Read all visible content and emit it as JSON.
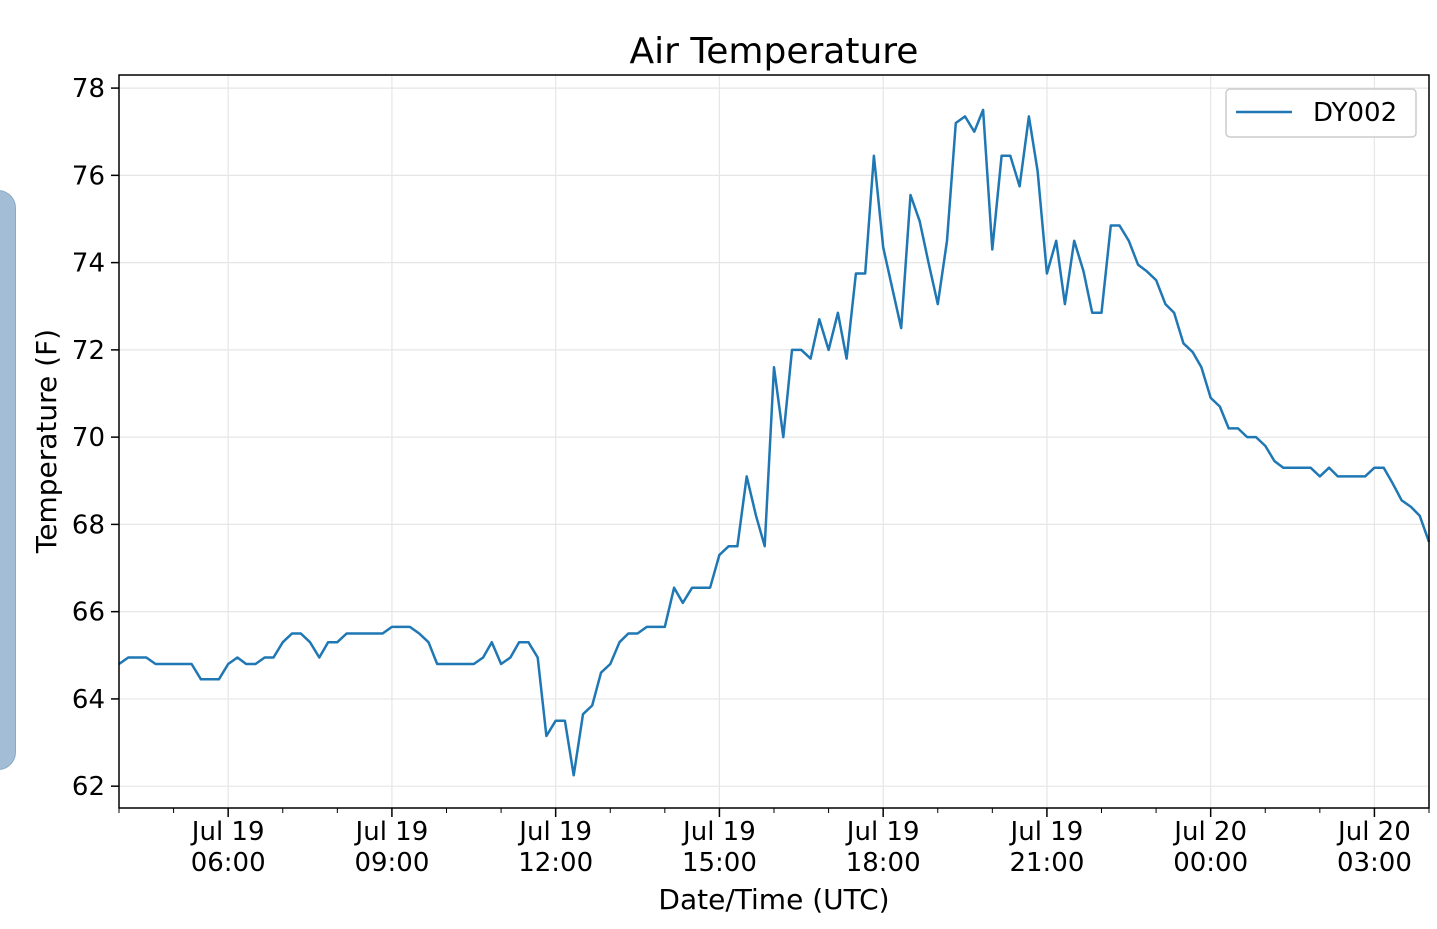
{
  "side_panel": {
    "color": "#a3bdd6"
  },
  "chart_data": {
    "type": "line",
    "title": "Air Temperature",
    "xlabel": "Date/Time (UTC)",
    "ylabel": "Temperature (F)",
    "ylim": [
      61.5,
      78.3
    ],
    "yticks": [
      62,
      64,
      66,
      68,
      70,
      72,
      74,
      76,
      78
    ],
    "xticks": [
      {
        "hour": 6,
        "line1": "Jul 19",
        "line2": "06:00"
      },
      {
        "hour": 9,
        "line1": "Jul 19",
        "line2": "09:00"
      },
      {
        "hour": 12,
        "line1": "Jul 19",
        "line2": "12:00"
      },
      {
        "hour": 15,
        "line1": "Jul 19",
        "line2": "15:00"
      },
      {
        "hour": 18,
        "line1": "Jul 19",
        "line2": "18:00"
      },
      {
        "hour": 21,
        "line1": "Jul 19",
        "line2": "21:00"
      },
      {
        "hour": 24,
        "line1": "Jul 20",
        "line2": "00:00"
      },
      {
        "hour": 27,
        "line1": "Jul 20",
        "line2": "03:00"
      }
    ],
    "xlim_hours": [
      4.0,
      28.0
    ],
    "grid": true,
    "legend_position": "top-right",
    "series": [
      {
        "name": "DY002",
        "color": "#1f77b4",
        "points": [
          [
            4.0,
            64.8
          ],
          [
            4.17,
            64.95
          ],
          [
            4.33,
            64.95
          ],
          [
            4.5,
            64.95
          ],
          [
            4.67,
            64.8
          ],
          [
            4.83,
            64.8
          ],
          [
            5.0,
            64.8
          ],
          [
            5.17,
            64.8
          ],
          [
            5.33,
            64.8
          ],
          [
            5.5,
            64.45
          ],
          [
            5.67,
            64.45
          ],
          [
            5.83,
            64.45
          ],
          [
            6.0,
            64.8
          ],
          [
            6.17,
            64.95
          ],
          [
            6.33,
            64.8
          ],
          [
            6.5,
            64.8
          ],
          [
            6.67,
            64.95
          ],
          [
            6.83,
            64.95
          ],
          [
            7.0,
            65.3
          ],
          [
            7.17,
            65.5
          ],
          [
            7.33,
            65.5
          ],
          [
            7.5,
            65.3
          ],
          [
            7.67,
            64.95
          ],
          [
            7.83,
            65.3
          ],
          [
            8.0,
            65.3
          ],
          [
            8.17,
            65.5
          ],
          [
            8.33,
            65.5
          ],
          [
            8.5,
            65.5
          ],
          [
            8.67,
            65.5
          ],
          [
            8.83,
            65.5
          ],
          [
            9.0,
            65.65
          ],
          [
            9.17,
            65.65
          ],
          [
            9.33,
            65.65
          ],
          [
            9.5,
            65.5
          ],
          [
            9.67,
            65.3
          ],
          [
            9.83,
            64.8
          ],
          [
            10.0,
            64.8
          ],
          [
            10.17,
            64.8
          ],
          [
            10.33,
            64.8
          ],
          [
            10.5,
            64.8
          ],
          [
            10.67,
            64.95
          ],
          [
            10.83,
            65.3
          ],
          [
            11.0,
            64.8
          ],
          [
            11.17,
            64.95
          ],
          [
            11.33,
            65.3
          ],
          [
            11.5,
            65.3
          ],
          [
            11.67,
            64.95
          ],
          [
            11.83,
            63.15
          ],
          [
            12.0,
            63.5
          ],
          [
            12.17,
            63.5
          ],
          [
            12.33,
            62.25
          ],
          [
            12.5,
            63.65
          ],
          [
            12.67,
            63.85
          ],
          [
            12.83,
            64.6
          ],
          [
            13.0,
            64.8
          ],
          [
            13.17,
            65.3
          ],
          [
            13.33,
            65.5
          ],
          [
            13.5,
            65.5
          ],
          [
            13.67,
            65.65
          ],
          [
            13.83,
            65.65
          ],
          [
            14.0,
            65.65
          ],
          [
            14.17,
            66.55
          ],
          [
            14.33,
            66.2
          ],
          [
            14.5,
            66.55
          ],
          [
            14.67,
            66.55
          ],
          [
            14.83,
            66.55
          ],
          [
            15.0,
            67.3
          ],
          [
            15.17,
            67.5
          ],
          [
            15.33,
            67.5
          ],
          [
            15.5,
            69.1
          ],
          [
            15.67,
            68.2
          ],
          [
            15.83,
            67.5
          ],
          [
            16.0,
            71.6
          ],
          [
            16.17,
            70.0
          ],
          [
            16.33,
            72.0
          ],
          [
            16.5,
            72.0
          ],
          [
            16.67,
            71.8
          ],
          [
            16.83,
            72.7
          ],
          [
            17.0,
            72.0
          ],
          [
            17.17,
            72.85
          ],
          [
            17.33,
            71.8
          ],
          [
            17.5,
            73.75
          ],
          [
            17.67,
            73.75
          ],
          [
            17.83,
            76.45
          ],
          [
            18.0,
            74.35
          ],
          [
            18.17,
            73.4
          ],
          [
            18.33,
            72.5
          ],
          [
            18.5,
            75.55
          ],
          [
            18.67,
            74.95
          ],
          [
            18.83,
            74.0
          ],
          [
            19.0,
            73.05
          ],
          [
            19.17,
            74.5
          ],
          [
            19.33,
            77.2
          ],
          [
            19.5,
            77.35
          ],
          [
            19.67,
            77.0
          ],
          [
            19.83,
            77.5
          ],
          [
            20.0,
            74.3
          ],
          [
            20.17,
            76.45
          ],
          [
            20.33,
            76.45
          ],
          [
            20.5,
            75.75
          ],
          [
            20.67,
            77.35
          ],
          [
            20.83,
            76.1
          ],
          [
            21.0,
            73.75
          ],
          [
            21.17,
            74.5
          ],
          [
            21.33,
            73.05
          ],
          [
            21.5,
            74.5
          ],
          [
            21.67,
            73.8
          ],
          [
            21.83,
            72.85
          ],
          [
            22.0,
            72.85
          ],
          [
            22.17,
            74.85
          ],
          [
            22.33,
            74.85
          ],
          [
            22.5,
            74.5
          ],
          [
            22.67,
            73.95
          ],
          [
            22.83,
            73.8
          ],
          [
            23.0,
            73.6
          ],
          [
            23.17,
            73.05
          ],
          [
            23.33,
            72.85
          ],
          [
            23.5,
            72.15
          ],
          [
            23.67,
            71.95
          ],
          [
            23.83,
            71.6
          ],
          [
            24.0,
            70.9
          ],
          [
            24.17,
            70.7
          ],
          [
            24.33,
            70.2
          ],
          [
            24.5,
            70.2
          ],
          [
            24.67,
            70.0
          ],
          [
            24.83,
            70.0
          ],
          [
            25.0,
            69.8
          ],
          [
            25.17,
            69.45
          ],
          [
            25.33,
            69.3
          ],
          [
            25.5,
            69.3
          ],
          [
            25.67,
            69.3
          ],
          [
            25.83,
            69.3
          ],
          [
            26.0,
            69.1
          ],
          [
            26.17,
            69.3
          ],
          [
            26.33,
            69.1
          ],
          [
            26.5,
            69.1
          ],
          [
            26.67,
            69.1
          ],
          [
            26.83,
            69.1
          ],
          [
            27.0,
            69.3
          ],
          [
            27.17,
            69.3
          ],
          [
            27.33,
            68.95
          ],
          [
            27.5,
            68.55
          ],
          [
            27.67,
            68.4
          ],
          [
            27.83,
            68.2
          ],
          [
            28.0,
            67.6
          ]
        ]
      }
    ]
  }
}
